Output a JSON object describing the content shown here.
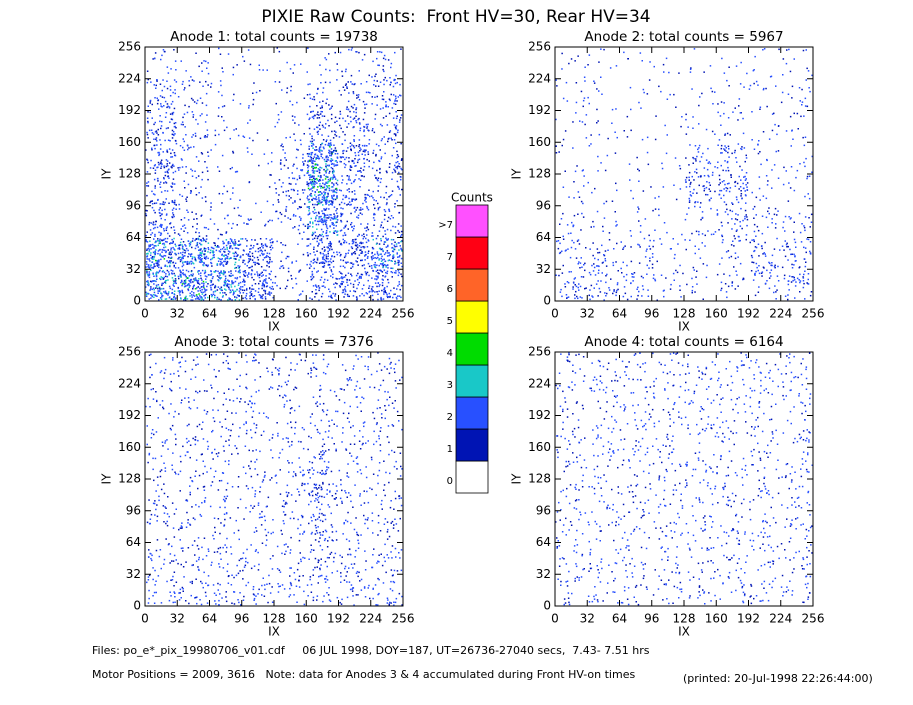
{
  "title": "PIXIE Raw Counts:  Front HV=30, Rear HV=34",
  "chart_data": [
    {
      "type": "density",
      "title": "Anode 1: total counts = 19738",
      "xlabel": "IX",
      "ylabel": "IY",
      "xlim": [
        0,
        256
      ],
      "ylim": [
        0,
        256
      ],
      "xticks": [
        0,
        32,
        64,
        96,
        128,
        160,
        192,
        224,
        256
      ],
      "yticks": [
        0,
        32,
        64,
        96,
        128,
        160,
        192,
        224,
        256
      ],
      "bins": [
        0,
        32,
        64,
        96,
        128,
        160,
        192,
        224,
        256
      ],
      "counts": [
        [
          800,
          900,
          800,
          600,
          100,
          300,
          400,
          500
        ],
        [
          900,
          800,
          700,
          500,
          100,
          500,
          500,
          700
        ],
        [
          350,
          150,
          100,
          60,
          150,
          700,
          300,
          250
        ],
        [
          300,
          120,
          50,
          40,
          200,
          1100,
          300,
          200
        ],
        [
          350,
          150,
          60,
          40,
          150,
          900,
          400,
          250
        ],
        [
          300,
          150,
          60,
          40,
          80,
          300,
          250,
          200
        ],
        [
          250,
          120,
          60,
          40,
          60,
          150,
          200,
          250
        ],
        [
          80,
          60,
          40,
          40,
          40,
          60,
          80,
          120
        ]
      ]
    },
    {
      "type": "density",
      "title": "Anode 2: total counts = 5967",
      "xlabel": "IX",
      "ylabel": "IY",
      "xlim": [
        0,
        256
      ],
      "ylim": [
        0,
        256
      ],
      "xticks": [
        0,
        32,
        64,
        96,
        128,
        160,
        192,
        224,
        256
      ],
      "yticks": [
        0,
        32,
        64,
        96,
        128,
        160,
        192,
        224,
        256
      ],
      "bins": [
        0,
        32,
        64,
        96,
        128,
        160,
        192,
        224,
        256
      ],
      "counts": [
        [
          200,
          200,
          150,
          100,
          60,
          100,
          150,
          200
        ],
        [
          150,
          150,
          120,
          80,
          60,
          100,
          200,
          200
        ],
        [
          80,
          60,
          50,
          40,
          100,
          200,
          120,
          100
        ],
        [
          50,
          40,
          30,
          30,
          250,
          300,
          60,
          60
        ],
        [
          50,
          40,
          30,
          30,
          150,
          200,
          60,
          60
        ],
        [
          50,
          40,
          30,
          30,
          50,
          80,
          60,
          60
        ],
        [
          60,
          50,
          40,
          30,
          40,
          50,
          60,
          80
        ],
        [
          40,
          40,
          30,
          30,
          30,
          30,
          40,
          60
        ]
      ]
    },
    {
      "type": "density",
      "title": "Anode 3: total counts = 7376",
      "xlabel": "IX",
      "ylabel": "IY",
      "xlim": [
        0,
        256
      ],
      "ylim": [
        0,
        256
      ],
      "xticks": [
        0,
        32,
        64,
        96,
        128,
        160,
        192,
        224,
        256
      ],
      "yticks": [
        0,
        32,
        64,
        96,
        128,
        160,
        192,
        224,
        256
      ],
      "bins": [
        0,
        32,
        64,
        96,
        128,
        160,
        192,
        224,
        256
      ],
      "counts": [
        [
          150,
          160,
          150,
          140,
          120,
          140,
          150,
          160
        ],
        [
          130,
          130,
          120,
          110,
          110,
          150,
          130,
          140
        ],
        [
          100,
          100,
          100,
          100,
          110,
          220,
          110,
          110
        ],
        [
          100,
          100,
          100,
          100,
          120,
          260,
          110,
          100
        ],
        [
          100,
          100,
          100,
          100,
          110,
          200,
          100,
          100
        ],
        [
          100,
          100,
          100,
          100,
          100,
          110,
          100,
          100
        ],
        [
          100,
          100,
          100,
          100,
          100,
          100,
          100,
          100
        ],
        [
          90,
          90,
          90,
          90,
          90,
          90,
          90,
          100
        ]
      ]
    },
    {
      "type": "density",
      "title": "Anode 4: total counts = 6164",
      "xlabel": "IX",
      "ylabel": "IY",
      "xlim": [
        0,
        256
      ],
      "ylim": [
        0,
        256
      ],
      "xticks": [
        0,
        32,
        64,
        96,
        128,
        160,
        192,
        224,
        256
      ],
      "yticks": [
        0,
        32,
        64,
        96,
        128,
        160,
        192,
        224,
        256
      ],
      "bins": [
        0,
        32,
        64,
        96,
        128,
        160,
        192,
        224,
        256
      ],
      "counts": [
        [
          100,
          95,
          95,
          95,
          95,
          95,
          95,
          110
        ],
        [
          95,
          95,
          95,
          95,
          95,
          95,
          95,
          105
        ],
        [
          95,
          95,
          95,
          95,
          95,
          95,
          95,
          100
        ],
        [
          95,
          95,
          95,
          95,
          95,
          95,
          95,
          100
        ],
        [
          95,
          95,
          95,
          95,
          95,
          95,
          95,
          100
        ],
        [
          95,
          95,
          95,
          95,
          95,
          95,
          95,
          100
        ],
        [
          95,
          95,
          95,
          95,
          95,
          95,
          95,
          100
        ],
        [
          95,
          95,
          95,
          95,
          95,
          95,
          95,
          105
        ]
      ]
    }
  ],
  "colorbar": {
    "title": "Counts",
    "levels": [
      {
        "label": "0",
        "color": "#ffffff"
      },
      {
        "label": "1",
        "color": "#0014b4"
      },
      {
        "label": "2",
        "color": "#2850ff"
      },
      {
        "label": "3",
        "color": "#19c8c8"
      },
      {
        "label": "4",
        "color": "#00dc00"
      },
      {
        "label": "5",
        "color": "#ffff00"
      },
      {
        "label": "6",
        "color": "#ff6428"
      },
      {
        "label": "7",
        "color": "#ff0014"
      },
      {
        "label": ">7",
        "color": "#ff50ff"
      }
    ]
  },
  "footer": [
    "Files: po_e*_pix_19980706_v01.cdf     06 JUL 1998, DOY=187, UT=26736-27040 secs,  7.43- 7.51 hrs",
    "Motor Positions = 2009, 3616   Note: data for Anodes 3 & 4 accumulated during Front HV-on times",
    "(printed: 20-Jul-1998 22:26:44:00)"
  ]
}
